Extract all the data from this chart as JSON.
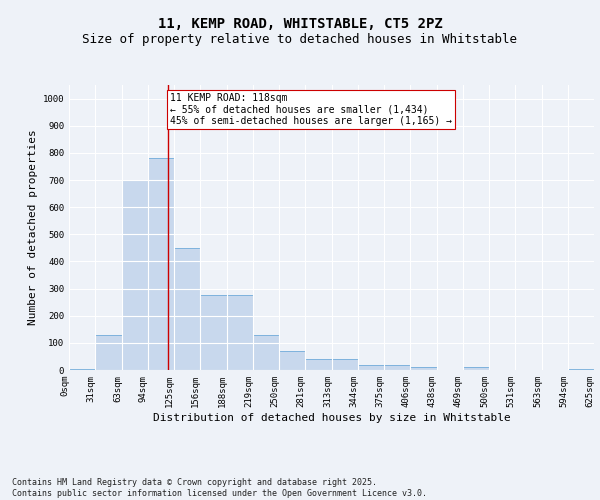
{
  "title_line1": "11, KEMP ROAD, WHITSTABLE, CT5 2PZ",
  "title_line2": "Size of property relative to detached houses in Whitstable",
  "xlabel": "Distribution of detached houses by size in Whitstable",
  "ylabel": "Number of detached properties",
  "bar_color": "#c8d8ed",
  "bar_edge_color": "#5a9fd4",
  "vline_color": "#cc0000",
  "vline_x": 118,
  "annotation_text": "11 KEMP ROAD: 118sqm\n← 55% of detached houses are smaller (1,434)\n45% of semi-detached houses are larger (1,165) →",
  "annotation_box_color": "#ffffff",
  "annotation_box_edge": "#cc0000",
  "bins": [
    0,
    31,
    63,
    94,
    125,
    156,
    188,
    219,
    250,
    281,
    313,
    344,
    375,
    406,
    438,
    469,
    500,
    531,
    563,
    594,
    625
  ],
  "bin_labels": [
    "0sqm",
    "31sqm",
    "63sqm",
    "94sqm",
    "125sqm",
    "156sqm",
    "188sqm",
    "219sqm",
    "250sqm",
    "281sqm",
    "313sqm",
    "344sqm",
    "375sqm",
    "406sqm",
    "438sqm",
    "469sqm",
    "500sqm",
    "531sqm",
    "563sqm",
    "594sqm",
    "625sqm"
  ],
  "bar_heights": [
    5,
    130,
    700,
    780,
    450,
    275,
    275,
    130,
    70,
    40,
    40,
    20,
    20,
    10,
    0,
    10,
    0,
    0,
    0,
    5
  ],
  "ylim": [
    0,
    1050
  ],
  "yticks": [
    0,
    100,
    200,
    300,
    400,
    500,
    600,
    700,
    800,
    900,
    1000
  ],
  "background_color": "#eef2f8",
  "grid_color": "#ffffff",
  "footer_text": "Contains HM Land Registry data © Crown copyright and database right 2025.\nContains public sector information licensed under the Open Government Licence v3.0.",
  "title_fontsize": 10,
  "subtitle_fontsize": 9,
  "axis_label_fontsize": 8,
  "tick_fontsize": 6.5,
  "annotation_fontsize": 7,
  "footer_fontsize": 6
}
